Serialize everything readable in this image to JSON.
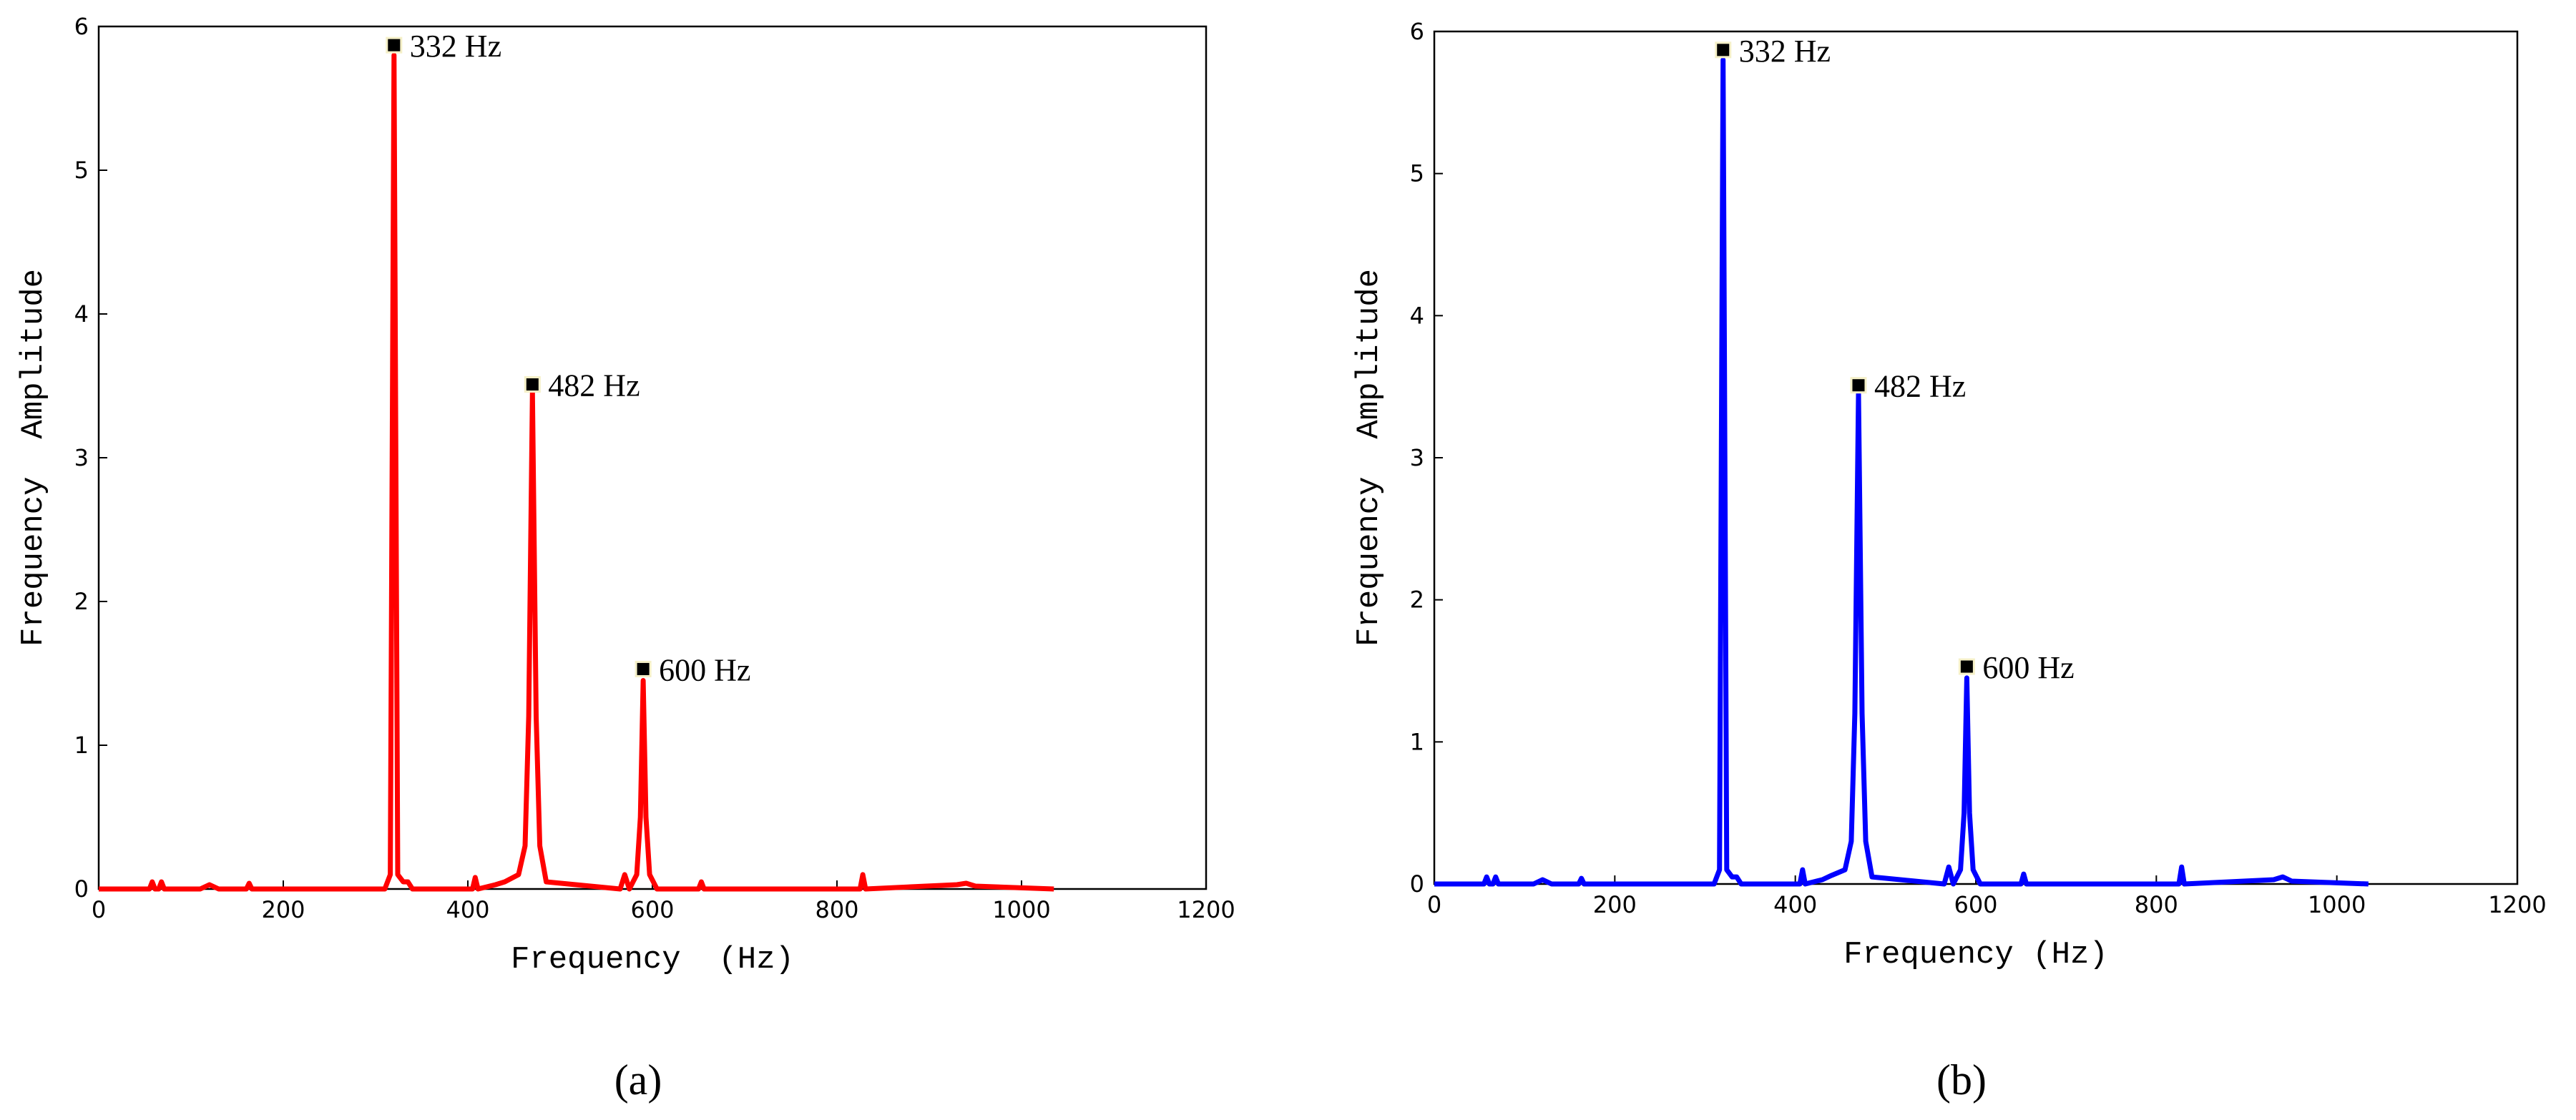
{
  "chart_data": [
    {
      "type": "line",
      "caption": "(a)",
      "xlabel": "Frequency  (Hz)",
      "ylabel": "Frequency  Amplitude",
      "xlim": [
        0,
        1200
      ],
      "xticks": [
        0,
        200,
        400,
        600,
        800,
        1000,
        1200
      ],
      "ylim": [
        0,
        6
      ],
      "yticks": [
        0,
        1,
        2,
        3,
        4,
        5,
        6
      ],
      "series": [
        {
          "color": "#ff0000",
          "x": [
            0,
            55,
            58,
            61,
            65,
            68,
            71,
            110,
            120,
            130,
            160,
            163,
            166,
            310,
            316,
            320,
            324,
            330,
            335,
            340,
            405,
            408,
            411,
            430,
            440,
            455,
            462,
            466,
            470,
            474,
            478,
            485,
            565,
            570,
            575,
            583,
            587,
            590,
            593,
            597,
            605,
            650,
            653,
            656,
            825,
            828,
            831,
            930,
            940,
            950,
            1035
          ],
          "values": [
            0,
            0,
            0.05,
            0,
            0,
            0.05,
            0,
            0,
            0.03,
            0,
            0,
            0.04,
            0,
            0,
            0.1,
            5.8,
            0.1,
            0.05,
            0.05,
            0,
            0,
            0.08,
            0,
            0.03,
            0.05,
            0.1,
            0.3,
            1.2,
            3.45,
            1.2,
            0.3,
            0.05,
            0,
            0.1,
            0,
            0.1,
            0.5,
            1.45,
            0.5,
            0.1,
            0,
            0,
            0.05,
            0,
            0,
            0.1,
            0,
            0.03,
            0.04,
            0.02,
            0
          ]
        }
      ],
      "annotations": [
        {
          "text": "332 Hz",
          "x": 320,
          "y": 5.87
        },
        {
          "text": "482 Hz",
          "x": 470,
          "y": 3.51
        },
        {
          "text": "600 Hz",
          "x": 590,
          "y": 1.53
        }
      ]
    },
    {
      "type": "line",
      "caption": "(b)",
      "xlabel": "Frequency (Hz)",
      "ylabel": "Frequency  Amplitude",
      "xlim": [
        0,
        1200
      ],
      "xticks": [
        0,
        200,
        400,
        600,
        800,
        1000,
        1200
      ],
      "ylim": [
        0,
        6
      ],
      "yticks": [
        0,
        1,
        2,
        3,
        4,
        5,
        6
      ],
      "series": [
        {
          "color": "#0000ff",
          "x": [
            0,
            55,
            58,
            61,
            65,
            68,
            71,
            110,
            120,
            130,
            160,
            163,
            166,
            310,
            316,
            320,
            324,
            330,
            335,
            340,
            405,
            408,
            411,
            430,
            440,
            455,
            462,
            466,
            470,
            474,
            478,
            485,
            565,
            570,
            575,
            583,
            587,
            590,
            593,
            597,
            605,
            650,
            653,
            656,
            825,
            828,
            831,
            930,
            940,
            950,
            1035
          ],
          "values": [
            0,
            0,
            0.05,
            0,
            0,
            0.05,
            0,
            0,
            0.03,
            0,
            0,
            0.04,
            0,
            0,
            0.1,
            5.8,
            0.1,
            0.05,
            0.05,
            0,
            0,
            0.1,
            0,
            0.03,
            0.06,
            0.1,
            0.3,
            1.2,
            3.45,
            1.2,
            0.3,
            0.05,
            0,
            0.12,
            0,
            0.1,
            0.5,
            1.45,
            0.5,
            0.1,
            0,
            0,
            0.07,
            0,
            0,
            0.12,
            0,
            0.03,
            0.05,
            0.02,
            0
          ]
        }
      ],
      "annotations": [
        {
          "text": "332 Hz",
          "x": 320,
          "y": 5.87
        },
        {
          "text": "482 Hz",
          "x": 470,
          "y": 3.51
        },
        {
          "text": "600 Hz",
          "x": 590,
          "y": 1.53
        }
      ]
    }
  ]
}
